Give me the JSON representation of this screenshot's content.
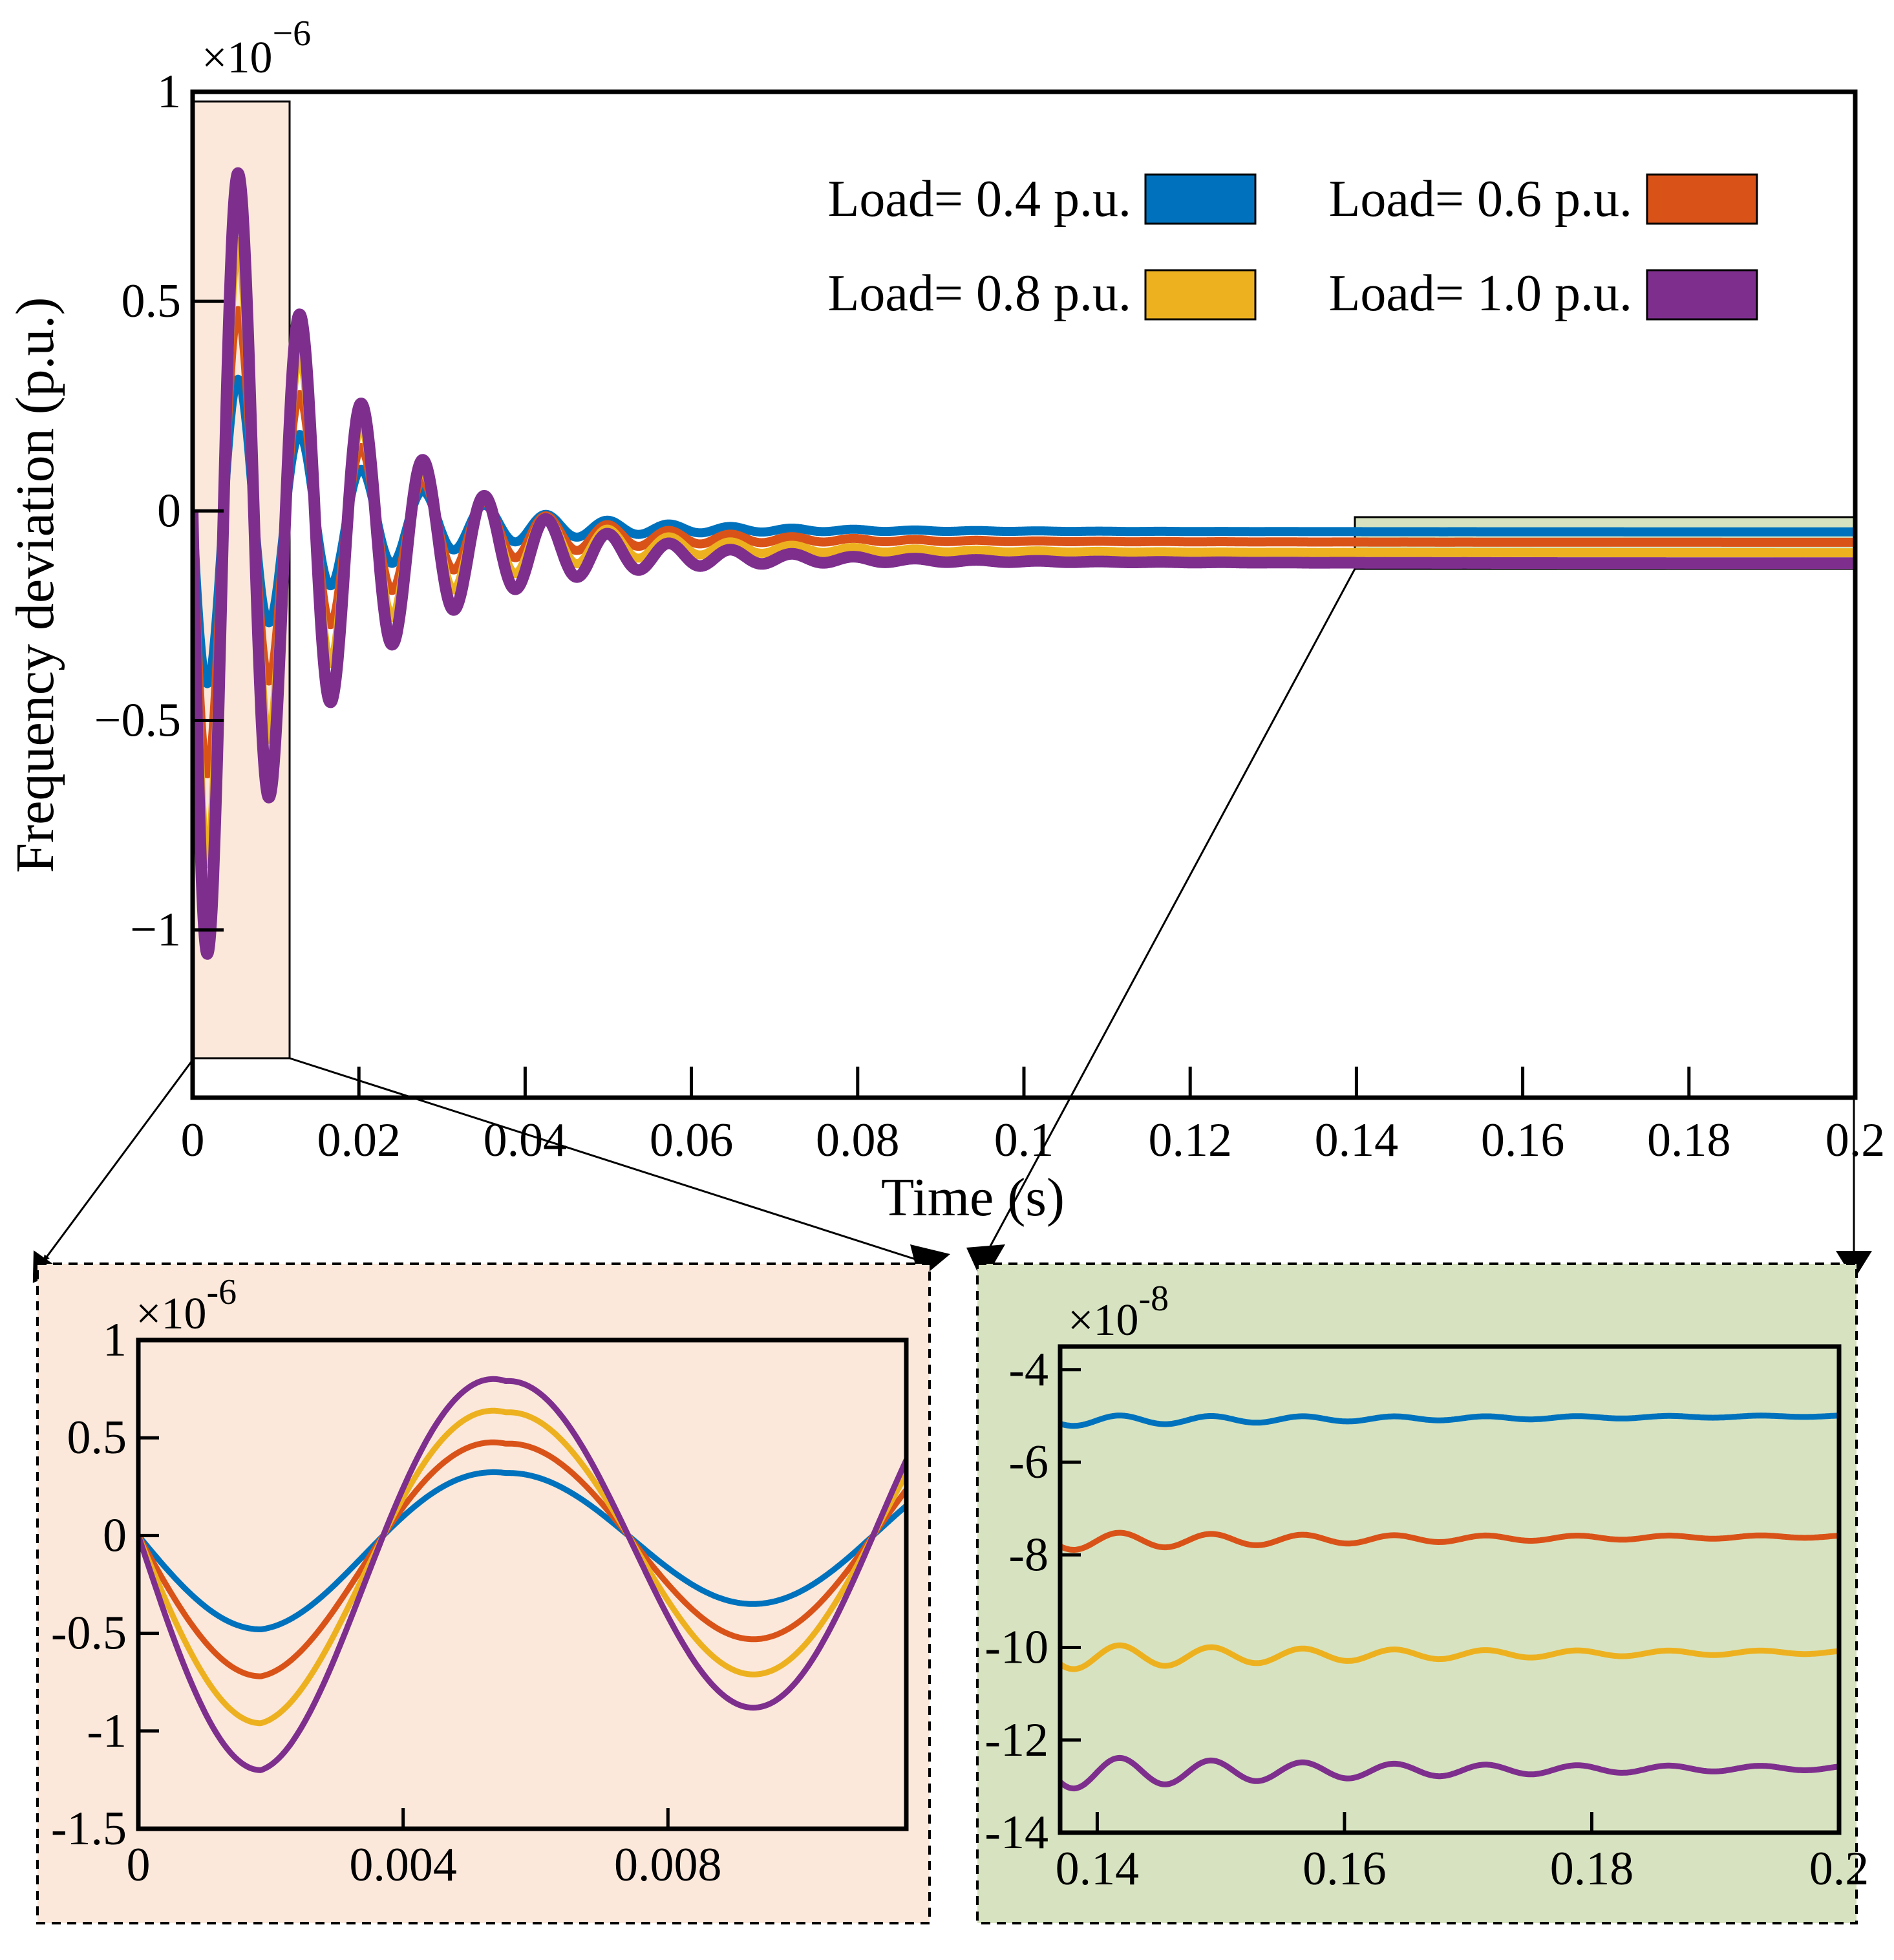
{
  "colors": {
    "blue": "#0072BD",
    "red": "#D95319",
    "yellow": "#EDB120",
    "purple": "#7E2F8E",
    "inset1_bg": "#FBE8DA",
    "inset2_bg": "#D7E3C0"
  },
  "chart_data": [
    {
      "id": "main",
      "type": "line",
      "title": "",
      "xlabel": "Time (s)",
      "ylabel": "Frequency deviation (p.u.)",
      "multiplier": "×10",
      "multiplier_exp": "−6",
      "xlim": [
        0,
        0.2
      ],
      "ylim": [
        -1.4,
        1.0
      ],
      "xticks": [
        0,
        0.02,
        0.04,
        0.06,
        0.08,
        0.1,
        0.12,
        0.14,
        0.16,
        0.18,
        0.2
      ],
      "xtick_labels": [
        "0",
        "0.02",
        "0.04",
        "0.06",
        "0.08",
        "0.1",
        "0.12",
        "0.14",
        "0.16",
        "0.18",
        "0.2"
      ],
      "yticks": [
        1,
        0.5,
        0,
        -0.5,
        -1
      ],
      "ytick_labels": [
        "1",
        "0.5",
        "0",
        "−0.5",
        "−1"
      ],
      "legend_position": "top-right",
      "series": [
        {
          "name": "Load= 0.4 p.u.",
          "color": "#0072BD",
          "amplitude": 0.46,
          "settle": -0.05
        },
        {
          "name": "Load= 0.6 p.u.",
          "color": "#D95319",
          "amplitude": 0.7,
          "settle": -0.075
        },
        {
          "name": "Load= 0.8 p.u.",
          "color": "#EDB120",
          "amplitude": 0.94,
          "settle": -0.1
        },
        {
          "name": "Load= 1.0 p.u.",
          "color": "#7E2F8E",
          "amplitude": 1.18,
          "settle": -0.125
        }
      ],
      "model": {
        "frequency_hz": 135,
        "decay_tau_s": 0.0155,
        "settle_tau_s": 0.03
      }
    },
    {
      "id": "inset-early",
      "type": "line",
      "multiplier": "×10",
      "multiplier_exp": "-6",
      "xlim": [
        0,
        0.0116
      ],
      "ylim": [
        -1.5,
        1.0
      ],
      "xticks": [
        0,
        0.004,
        0.008
      ],
      "xtick_labels": [
        "0",
        "0.004",
        "0.008"
      ],
      "yticks": [
        1,
        0.5,
        0,
        -0.5,
        -1,
        -1.5
      ],
      "ytick_labels": [
        "1",
        "0.5",
        "0",
        "-0.5",
        "-1",
        "-1.5"
      ],
      "series": [
        {
          "name": "Load= 0.4 p.u.",
          "color": "#0072BD",
          "peaks": [
            -0.48,
            0.32,
            -0.35
          ]
        },
        {
          "name": "Load= 0.6 p.u.",
          "color": "#D95319",
          "peaks": [
            -0.72,
            0.47,
            -0.53
          ]
        },
        {
          "name": "Load= 0.8 p.u.",
          "color": "#EDB120",
          "peaks": [
            -0.96,
            0.63,
            -0.71
          ]
        },
        {
          "name": "Load= 1.0 p.u.",
          "color": "#7E2F8E",
          "peaks": [
            -1.2,
            0.79,
            -0.88
          ]
        }
      ]
    },
    {
      "id": "inset-steady",
      "type": "line",
      "multiplier": "×10",
      "multiplier_exp": "-8",
      "xlim": [
        0.137,
        0.2
      ],
      "ylim": [
        -14,
        -3.5
      ],
      "xticks": [
        0.14,
        0.16,
        0.18,
        0.2
      ],
      "xtick_labels": [
        "0.14",
        "0.16",
        "0.18",
        "0.2"
      ],
      "yticks": [
        -4,
        -6,
        -8,
        -10,
        -12,
        -14
      ],
      "ytick_labels": [
        "-4",
        "-6",
        "-8",
        "-10",
        "-12",
        "-14"
      ],
      "series": [
        {
          "name": "Load= 0.4 p.u.",
          "color": "#0072BD",
          "level": -5.0
        },
        {
          "name": "Load= 0.6 p.u.",
          "color": "#D95319",
          "level": -7.6
        },
        {
          "name": "Load= 0.8 p.u.",
          "color": "#EDB120",
          "level": -10.1
        },
        {
          "name": "Load= 1.0 p.u.",
          "color": "#7E2F8E",
          "level": -12.6
        }
      ]
    }
  ]
}
